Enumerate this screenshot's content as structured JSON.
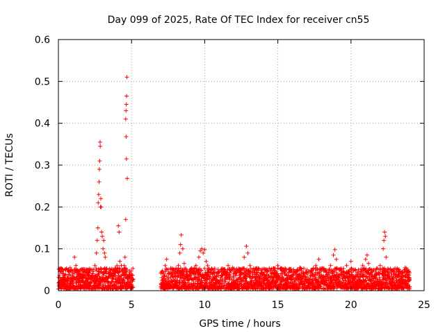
{
  "chart_data": {
    "type": "scatter",
    "title": "Day 099 of 2025, Rate Of TEC Index for receiver cn55",
    "xlabel": "GPS time / hours",
    "ylabel": "ROTI / TECUs",
    "xlim": [
      0,
      25
    ],
    "ylim": [
      0,
      0.6
    ],
    "xticks": [
      0,
      5,
      10,
      15,
      20,
      25
    ],
    "yticks": [
      0,
      0.1,
      0.2,
      0.3,
      0.4,
      0.5,
      0.6
    ],
    "xtick_labels": [
      "0",
      "5",
      "10",
      "15",
      "20",
      "25"
    ],
    "ytick_labels": [
      "0",
      "0.1",
      "0.2",
      "0.3",
      "0.4",
      "0.5",
      "0.6"
    ],
    "grid": true,
    "marker": "+",
    "color": "#ff0000",
    "series": [
      {
        "points": [
          [
            0.1,
            0.03
          ],
          [
            0.2,
            0.045
          ],
          [
            0.3,
            0.02
          ],
          [
            0.5,
            0.05
          ],
          [
            0.6,
            0.03
          ],
          [
            0.8,
            0.055
          ],
          [
            1.0,
            0.04
          ],
          [
            1.1,
            0.08
          ],
          [
            1.2,
            0.06
          ],
          [
            1.3,
            0.035
          ],
          [
            1.5,
            0.05
          ],
          [
            1.7,
            0.03
          ],
          [
            1.9,
            0.045
          ],
          [
            2.1,
            0.03
          ],
          [
            2.3,
            0.05
          ],
          [
            2.5,
            0.06
          ],
          [
            2.6,
            0.09
          ],
          [
            2.65,
            0.12
          ],
          [
            2.7,
            0.15
          ],
          [
            2.72,
            0.21
          ],
          [
            2.75,
            0.23
          ],
          [
            2.78,
            0.26
          ],
          [
            2.8,
            0.29
          ],
          [
            2.82,
            0.31
          ],
          [
            2.85,
            0.355
          ],
          [
            2.86,
            0.345
          ],
          [
            2.88,
            0.2
          ],
          [
            2.9,
            0.22
          ],
          [
            2.92,
            0.2
          ],
          [
            2.95,
            0.14
          ],
          [
            3.0,
            0.13
          ],
          [
            3.05,
            0.1
          ],
          [
            3.1,
            0.12
          ],
          [
            3.15,
            0.09
          ],
          [
            3.2,
            0.08
          ],
          [
            3.3,
            0.05
          ],
          [
            3.5,
            0.04
          ],
          [
            3.7,
            0.03
          ],
          [
            3.9,
            0.035
          ],
          [
            4.0,
            0.06
          ],
          [
            4.1,
            0.155
          ],
          [
            4.15,
            0.14
          ],
          [
            4.2,
            0.07
          ],
          [
            4.3,
            0.06
          ],
          [
            4.4,
            0.04
          ],
          [
            4.5,
            0.06
          ],
          [
            4.55,
            0.08
          ],
          [
            4.6,
            0.17
          ],
          [
            4.6,
            0.41
          ],
          [
            4.62,
            0.43
          ],
          [
            4.64,
            0.445
          ],
          [
            4.66,
            0.465
          ],
          [
            4.68,
            0.51
          ],
          [
            4.63,
            0.368
          ],
          [
            4.65,
            0.315
          ],
          [
            4.7,
            0.268
          ],
          [
            4.8,
            0.03
          ],
          [
            4.9,
            0.02
          ],
          [
            5.0,
            0.015
          ],
          [
            7.1,
            0.02
          ],
          [
            7.2,
            0.04
          ],
          [
            7.3,
            0.06
          ],
          [
            7.4,
            0.075
          ],
          [
            7.5,
            0.05
          ],
          [
            7.8,
            0.035
          ],
          [
            8.0,
            0.05
          ],
          [
            8.2,
            0.06
          ],
          [
            8.3,
            0.09
          ],
          [
            8.35,
            0.11
          ],
          [
            8.4,
            0.133
          ],
          [
            8.5,
            0.1
          ],
          [
            8.6,
            0.065
          ],
          [
            8.8,
            0.04
          ],
          [
            9.0,
            0.05
          ],
          [
            9.2,
            0.045
          ],
          [
            9.4,
            0.06
          ],
          [
            9.6,
            0.08
          ],
          [
            9.7,
            0.095
          ],
          [
            9.8,
            0.1
          ],
          [
            9.9,
            0.09
          ],
          [
            10.0,
            0.098
          ],
          [
            10.1,
            0.07
          ],
          [
            10.2,
            0.06
          ],
          [
            10.4,
            0.045
          ],
          [
            10.6,
            0.05
          ],
          [
            10.8,
            0.035
          ],
          [
            11.0,
            0.045
          ],
          [
            11.3,
            0.05
          ],
          [
            11.6,
            0.06
          ],
          [
            11.9,
            0.055
          ],
          [
            12.1,
            0.04
          ],
          [
            12.4,
            0.05
          ],
          [
            12.7,
            0.08
          ],
          [
            12.85,
            0.106
          ],
          [
            12.95,
            0.09
          ],
          [
            13.1,
            0.06
          ],
          [
            13.3,
            0.045
          ],
          [
            13.6,
            0.03
          ],
          [
            13.9,
            0.04
          ],
          [
            14.2,
            0.035
          ],
          [
            14.5,
            0.05
          ],
          [
            14.8,
            0.04
          ],
          [
            15.0,
            0.06
          ],
          [
            15.3,
            0.04
          ],
          [
            15.6,
            0.05
          ],
          [
            15.9,
            0.035
          ],
          [
            16.2,
            0.045
          ],
          [
            16.5,
            0.055
          ],
          [
            16.8,
            0.04
          ],
          [
            17.0,
            0.05
          ],
          [
            17.3,
            0.045
          ],
          [
            17.6,
            0.06
          ],
          [
            17.8,
            0.075
          ],
          [
            18.0,
            0.05
          ],
          [
            18.3,
            0.045
          ],
          [
            18.6,
            0.06
          ],
          [
            18.8,
            0.085
          ],
          [
            18.9,
            0.098
          ],
          [
            19.0,
            0.075
          ],
          [
            19.2,
            0.05
          ],
          [
            19.5,
            0.045
          ],
          [
            19.7,
            0.06
          ],
          [
            19.9,
            0.045
          ],
          [
            20.0,
            0.07
          ],
          [
            20.2,
            0.05
          ],
          [
            20.5,
            0.045
          ],
          [
            20.8,
            0.06
          ],
          [
            21.0,
            0.075
          ],
          [
            21.1,
            0.085
          ],
          [
            21.2,
            0.065
          ],
          [
            21.4,
            0.05
          ],
          [
            21.7,
            0.045
          ],
          [
            22.0,
            0.06
          ],
          [
            22.2,
            0.1
          ],
          [
            22.25,
            0.12
          ],
          [
            22.3,
            0.14
          ],
          [
            22.35,
            0.13
          ],
          [
            22.4,
            0.08
          ],
          [
            22.6,
            0.05
          ],
          [
            22.9,
            0.04
          ],
          [
            23.2,
            0.05
          ],
          [
            23.5,
            0.045
          ],
          [
            23.7,
            0.055
          ],
          [
            23.9,
            0.05
          ],
          [
            24.0,
            0.03
          ]
        ],
        "dense_band": {
          "segments": [
            [
              0.0,
              5.1
            ],
            [
              7.0,
              24.0
            ]
          ],
          "y_range": [
            0.0,
            0.05
          ],
          "step_hours": 0.02
        }
      }
    ]
  }
}
